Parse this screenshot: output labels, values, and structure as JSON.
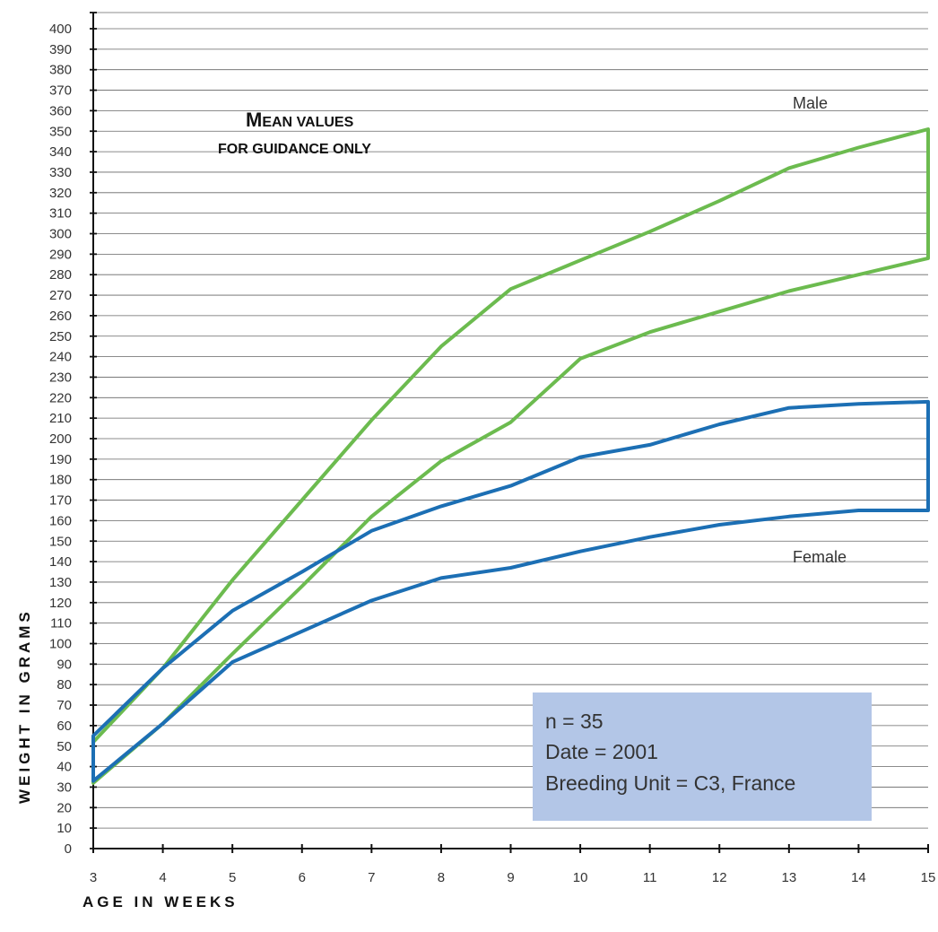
{
  "chart_data": {
    "type": "line",
    "title": "",
    "xlabel": "AGE IN WEEKS",
    "ylabel": "WEIGHT IN GRAMS",
    "xlim": [
      3,
      15
    ],
    "ylim": [
      0,
      400
    ],
    "x_ticks": [
      3,
      4,
      5,
      6,
      7,
      8,
      9,
      10,
      11,
      12,
      13,
      14,
      15
    ],
    "y_ticks": [
      0,
      10,
      20,
      30,
      40,
      50,
      60,
      70,
      80,
      90,
      100,
      110,
      120,
      130,
      140,
      150,
      160,
      170,
      180,
      190,
      200,
      210,
      220,
      230,
      240,
      250,
      260,
      270,
      280,
      290,
      300,
      310,
      320,
      330,
      340,
      350,
      360,
      370,
      380,
      390,
      400
    ],
    "grid": true,
    "colors": {
      "male": "#6cbb4f",
      "female": "#1c6fb4",
      "info_box": "#b3c6e7",
      "grid": "#666666"
    },
    "annotation": {
      "line1": "MEAN VALUES",
      "line2": "FOR GUIDANCE ONLY"
    },
    "series": [
      {
        "name": "Male",
        "x": [
          3,
          4,
          5,
          6,
          7,
          8,
          9,
          10,
          11,
          12,
          13,
          14,
          15
        ],
        "upper": [
          52,
          88,
          131,
          170,
          209,
          245,
          273,
          287,
          301,
          316,
          332,
          342,
          351
        ],
        "lower": [
          32,
          61,
          95,
          128,
          162,
          189,
          208,
          239,
          252,
          262,
          272,
          280,
          288
        ]
      },
      {
        "name": "Female",
        "x": [
          3,
          4,
          5,
          6,
          7,
          8,
          9,
          10,
          11,
          12,
          13,
          14,
          15
        ],
        "upper": [
          55,
          88,
          116,
          135,
          155,
          167,
          177,
          191,
          197,
          207,
          215,
          217,
          218
        ],
        "lower": [
          33,
          61,
          91,
          106,
          121,
          132,
          137,
          145,
          152,
          158,
          162,
          165,
          165
        ]
      }
    ]
  },
  "info_box": {
    "line1": "n = 35",
    "line2": "Date = 2001",
    "line3": "Breeding Unit = C3, France"
  }
}
